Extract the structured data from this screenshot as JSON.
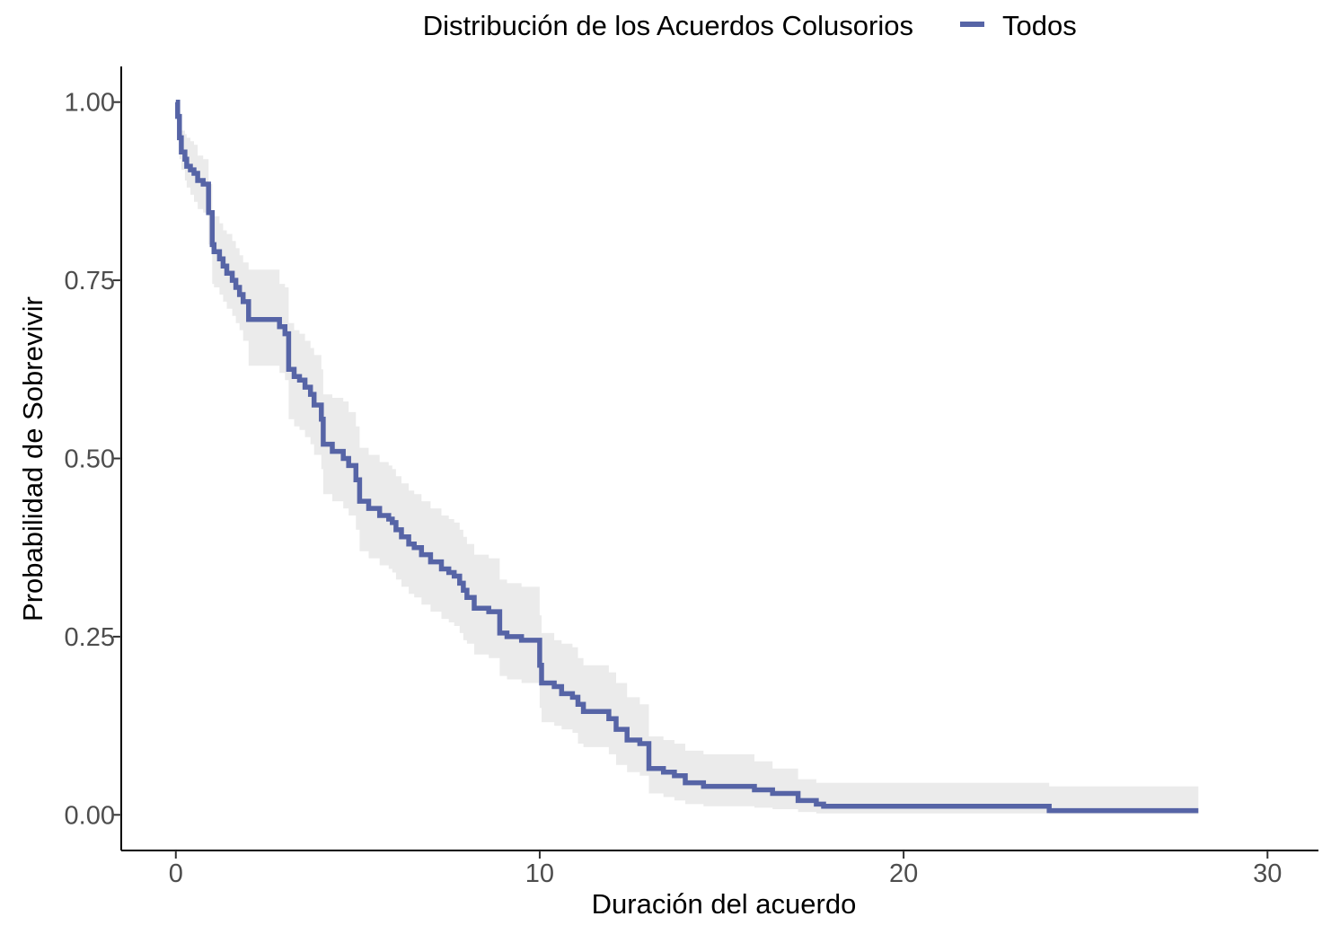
{
  "colors": {
    "line": "#5664A6",
    "band": "#EBEBEB",
    "axis": "#000000",
    "tick_text": "#4D4D4D",
    "background": "#FFFFFF"
  },
  "chart_data": {
    "type": "line",
    "subtype": "step (Kaplan-Meier survival curve with confidence band)",
    "legend_title": "Distribución de los Acuerdos Colusorios",
    "legend_position": "top",
    "xlabel": "Duración del acuerdo",
    "ylabel": "Probabilidad de Sobrevivir",
    "xlim": [
      -1.5,
      31.4
    ],
    "ylim": [
      -0.05,
      1.05
    ],
    "x_ticks": [
      0,
      10,
      20,
      30
    ],
    "x_tick_labels": [
      "0",
      "10",
      "20",
      "30"
    ],
    "y_ticks": [
      0,
      0.25,
      0.5,
      0.75,
      1
    ],
    "y_tick_labels": [
      "0.00",
      "0.25",
      "0.50",
      "0.75",
      "1.00"
    ],
    "grid": false,
    "series": [
      {
        "name": "Todos",
        "color": "#5664A6",
        "x": [
          0,
          0.05,
          0.1,
          0.15,
          0.25,
          0.3,
          0.4,
          0.5,
          0.6,
          0.75,
          0.9,
          1,
          1.05,
          1.2,
          1.3,
          1.4,
          1.55,
          1.65,
          1.75,
          1.85,
          2,
          2.5,
          2.85,
          3,
          3.1,
          3.25,
          3.4,
          3.55,
          3.7,
          3.8,
          4,
          4.05,
          4.3,
          4.6,
          4.75,
          4.95,
          5.05,
          5.3,
          5.6,
          5.85,
          5.95,
          6.05,
          6.2,
          6.4,
          6.55,
          6.75,
          7,
          7.3,
          7.5,
          7.65,
          7.8,
          7.9,
          8,
          8.2,
          8.6,
          8.9,
          9.1,
          9.5,
          9.75,
          10,
          10.05,
          10.4,
          10.6,
          10.9,
          11.05,
          11.2,
          11.6,
          11.9,
          12.1,
          12.4,
          12.75,
          13,
          13.4,
          13.7,
          14,
          14.5,
          15,
          15.9,
          16.4,
          17.1,
          17.6,
          17.8,
          24,
          28.1
        ],
        "y": [
          1,
          0.98,
          0.95,
          0.93,
          0.92,
          0.91,
          0.905,
          0.9,
          0.89,
          0.885,
          0.845,
          0.8,
          0.79,
          0.78,
          0.77,
          0.76,
          0.75,
          0.74,
          0.73,
          0.72,
          0.695,
          0.695,
          0.685,
          0.675,
          0.625,
          0.615,
          0.61,
          0.6,
          0.59,
          0.575,
          0.555,
          0.52,
          0.51,
          0.5,
          0.49,
          0.47,
          0.44,
          0.43,
          0.42,
          0.415,
          0.41,
          0.4,
          0.39,
          0.38,
          0.375,
          0.365,
          0.355,
          0.345,
          0.34,
          0.335,
          0.325,
          0.315,
          0.305,
          0.29,
          0.285,
          0.255,
          0.25,
          0.245,
          0.245,
          0.21,
          0.185,
          0.18,
          0.17,
          0.165,
          0.155,
          0.145,
          0.145,
          0.135,
          0.12,
          0.105,
          0.1,
          0.065,
          0.06,
          0.055,
          0.045,
          0.04,
          0.04,
          0.035,
          0.03,
          0.02,
          0.015,
          0.012,
          0.006,
          0.006
        ],
        "ci_upper": [
          1,
          1,
          0.975,
          0.96,
          0.955,
          0.95,
          0.945,
          0.94,
          0.925,
          0.92,
          0.885,
          0.845,
          0.84,
          0.83,
          0.82,
          0.815,
          0.805,
          0.795,
          0.785,
          0.775,
          0.765,
          0.765,
          0.745,
          0.74,
          0.69,
          0.68,
          0.675,
          0.665,
          0.655,
          0.645,
          0.625,
          0.59,
          0.585,
          0.58,
          0.565,
          0.545,
          0.515,
          0.505,
          0.495,
          0.49,
          0.485,
          0.475,
          0.465,
          0.455,
          0.45,
          0.44,
          0.43,
          0.42,
          0.415,
          0.41,
          0.4,
          0.39,
          0.38,
          0.365,
          0.36,
          0.33,
          0.325,
          0.32,
          0.32,
          0.28,
          0.255,
          0.245,
          0.24,
          0.235,
          0.22,
          0.21,
          0.21,
          0.2,
          0.185,
          0.165,
          0.155,
          0.11,
          0.105,
          0.1,
          0.09,
          0.085,
          0.085,
          0.075,
          0.065,
          0.05,
          0.045,
          0.045,
          0.04,
          0.04
        ],
        "ci_lower": [
          1,
          0.955,
          0.92,
          0.905,
          0.89,
          0.88,
          0.87,
          0.86,
          0.85,
          0.845,
          0.8,
          0.745,
          0.74,
          0.73,
          0.72,
          0.71,
          0.7,
          0.69,
          0.68,
          0.665,
          0.63,
          0.63,
          0.62,
          0.61,
          0.555,
          0.545,
          0.54,
          0.53,
          0.52,
          0.505,
          0.485,
          0.45,
          0.44,
          0.43,
          0.42,
          0.4,
          0.37,
          0.36,
          0.35,
          0.345,
          0.34,
          0.33,
          0.32,
          0.31,
          0.305,
          0.295,
          0.285,
          0.275,
          0.27,
          0.265,
          0.255,
          0.245,
          0.24,
          0.225,
          0.22,
          0.195,
          0.19,
          0.185,
          0.185,
          0.15,
          0.13,
          0.125,
          0.12,
          0.115,
          0.1,
          0.095,
          0.095,
          0.085,
          0.07,
          0.06,
          0.055,
          0.03,
          0.025,
          0.02,
          0.015,
          0.012,
          0.012,
          0.01,
          0.008,
          0.004,
          0.002,
          0.002,
          0.001,
          0.001
        ]
      }
    ]
  }
}
